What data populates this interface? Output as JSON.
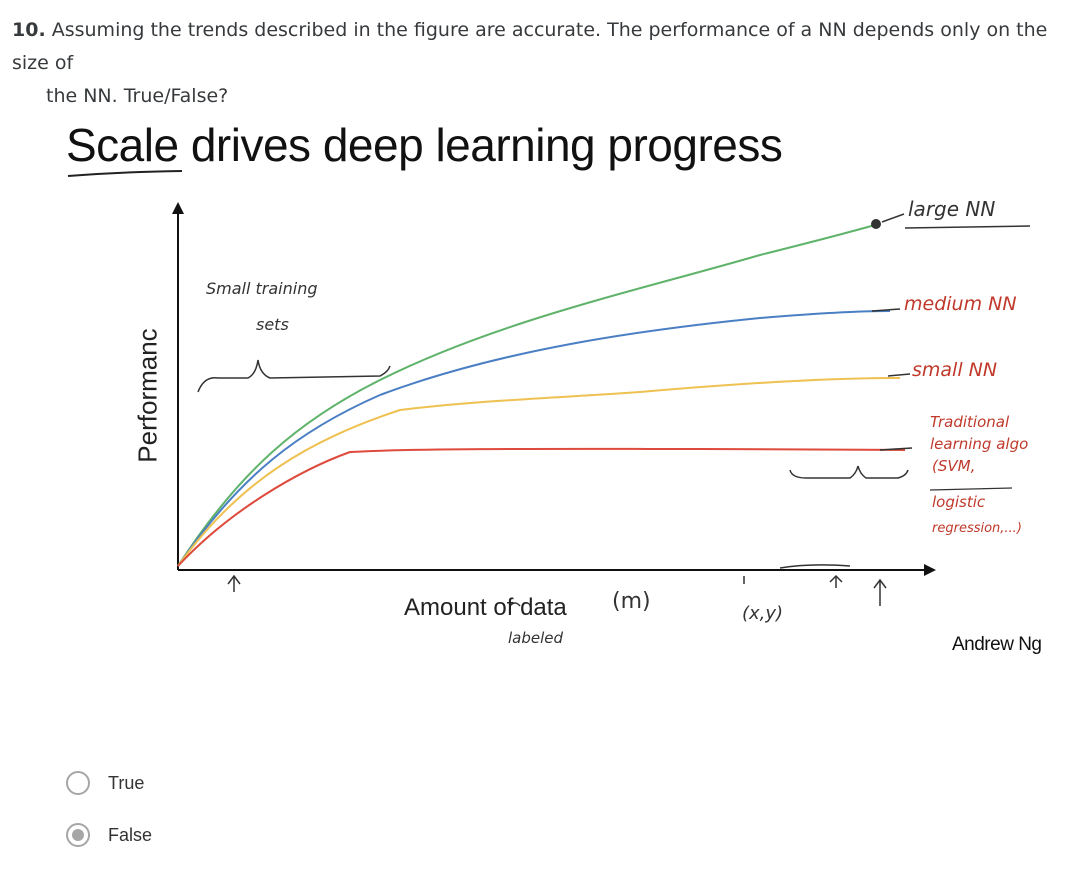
{
  "question": {
    "number": "10.",
    "text_line1": "Assuming the trends described in the figure are accurate. The performance of a NN depends only on the size of",
    "text_line2": "the NN. True/False?"
  },
  "figure": {
    "title": "Scale drives deep learning progress",
    "y_axis_label": "Performanc",
    "x_axis_label": "Amount of data",
    "credit": "Andrew Ng",
    "handwritten": {
      "large_nn": "large NN",
      "medium_nn": "medium NN",
      "small_nn": "small NN",
      "traditional": [
        "Traditional",
        "learning algo",
        "(SVM,",
        "logistic",
        "regression,...)"
      ],
      "small_training_sets": [
        "Small training",
        "sets"
      ],
      "m": "(m)",
      "labeled": "labeled",
      "xy": "(x,y)"
    },
    "series_colors": {
      "large_nn": "#5fb36a",
      "medium_nn": "#4a7fc4",
      "small_nn": "#eec150",
      "traditional": "#de4a3c",
      "annotation_ink": "#c0392b"
    }
  },
  "options": [
    {
      "label": "True",
      "selected": false
    },
    {
      "label": "False",
      "selected": true
    }
  ]
}
